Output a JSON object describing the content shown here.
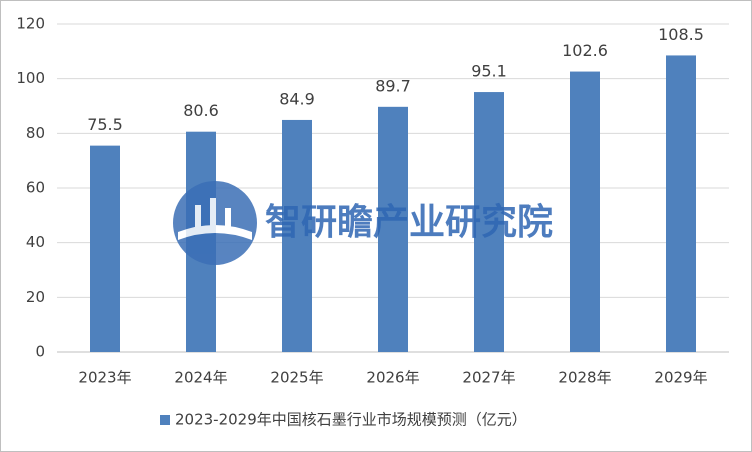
{
  "chart_data": {
    "type": "bar",
    "categories": [
      "2023年",
      "2024年",
      "2025年",
      "2026年",
      "2027年",
      "2028年",
      "2029年"
    ],
    "series": [
      {
        "name": "2023-2029年中国核石墨行业市场规模预测（亿元）",
        "color": "#4f81bd",
        "values": [
          75.5,
          80.6,
          84.9,
          89.7,
          95.1,
          102.6,
          108.5
        ]
      }
    ],
    "ylim": [
      0,
      120
    ],
    "yticks": [
      0,
      20,
      40,
      60,
      80,
      100,
      120
    ],
    "grid": true,
    "legend": "bottom",
    "watermark": "智研瞻产业研究院"
  }
}
